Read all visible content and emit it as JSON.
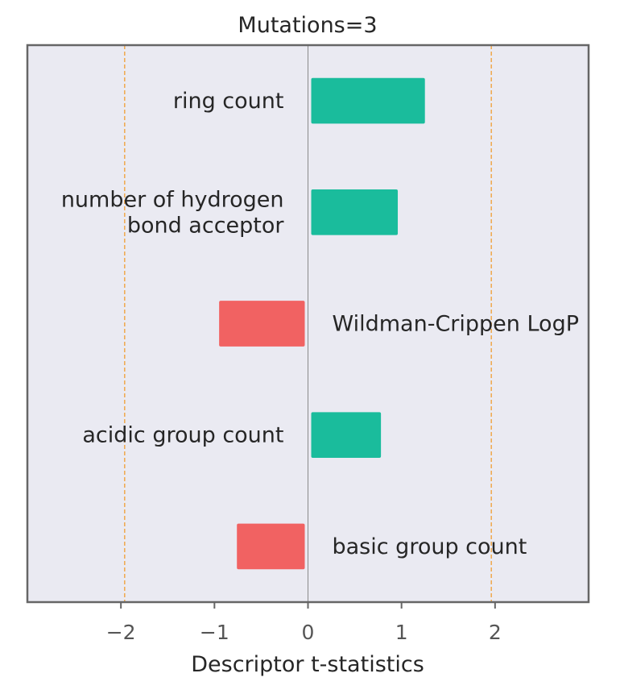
{
  "chart_data": {
    "type": "bar",
    "orientation": "horizontal",
    "title": "Mutations=3",
    "xlabel": "Descriptor t-statistics",
    "ylabel": "",
    "xlim": [
      -3,
      3
    ],
    "xticks": [
      -2,
      -1,
      0,
      1,
      2
    ],
    "xtick_labels": [
      "−2",
      "−1",
      "0",
      "1",
      "2"
    ],
    "threshold_lines": [
      -1.96,
      1.96
    ],
    "grid": false,
    "categories": [
      "ring count",
      "number of hydrogen\nbond acceptor",
      "Wildman-Crippen LogP",
      "acidic group count",
      "basic group count"
    ],
    "values": [
      1.25,
      0.96,
      -0.95,
      0.78,
      -0.76
    ],
    "colors": {
      "positive": "#1abc9c",
      "negative": "#f16262",
      "plot_background": "#eaeaf2",
      "threshold_line": "#f0a340",
      "zero_line": "#8a8a8a",
      "frame": "#666666",
      "text": "#262626",
      "tick_text": "#555555"
    }
  }
}
